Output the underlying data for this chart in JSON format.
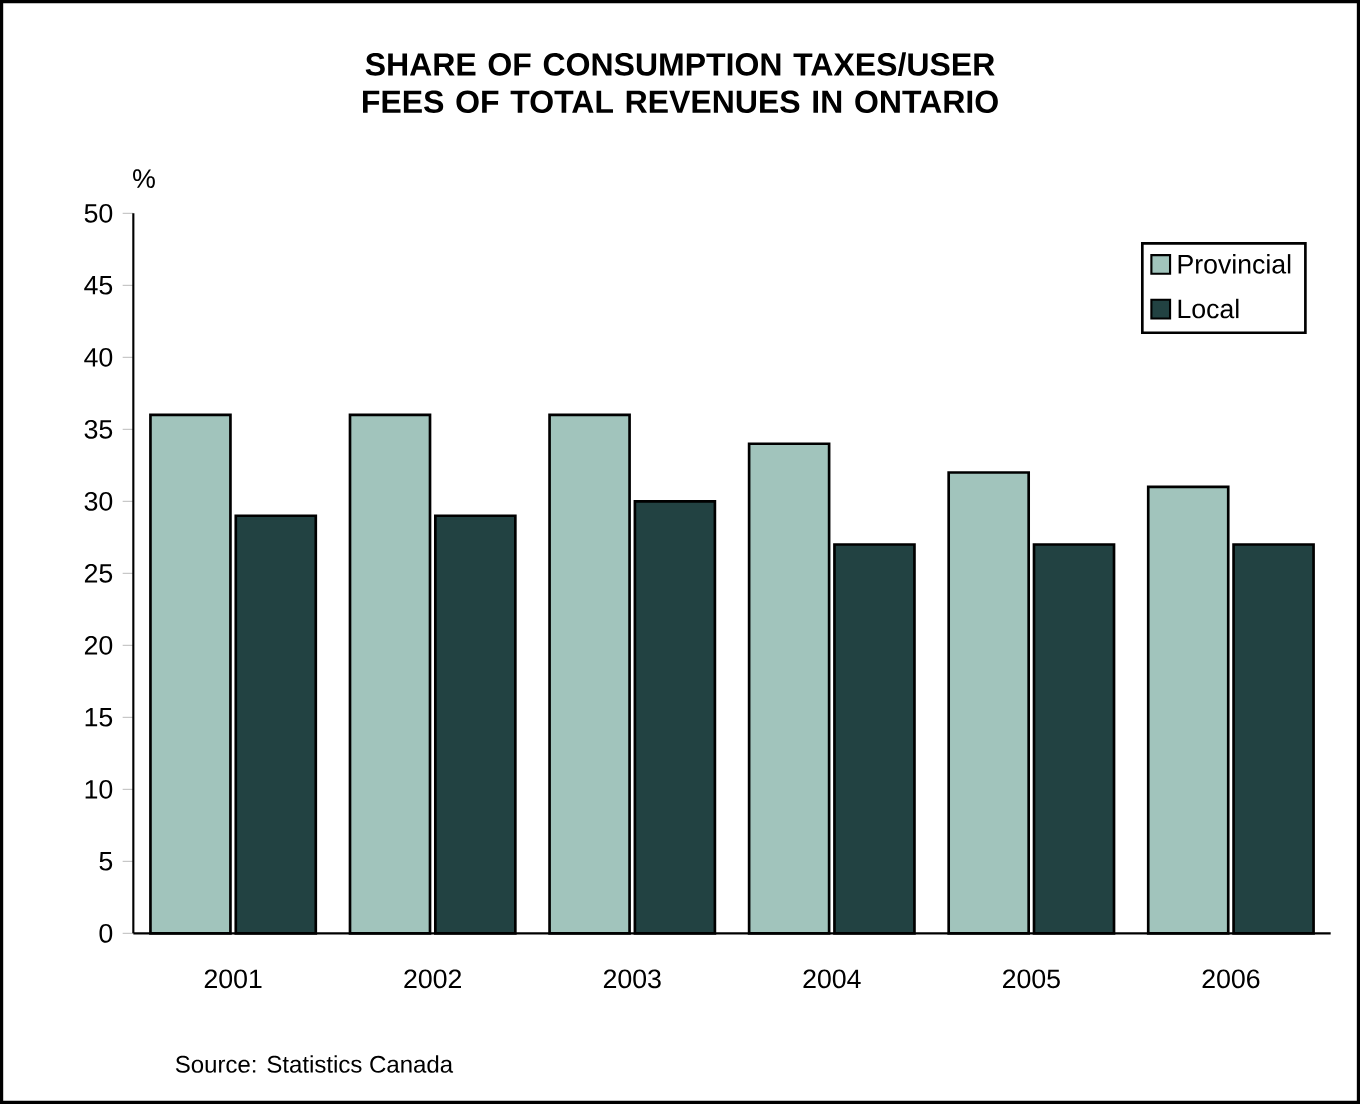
{
  "chart_data": {
    "type": "bar",
    "title": "SHARE OF CONSUMPTION TAXES/USER FEES OF TOTAL REVENUES  IN ONTARIO",
    "ylabel": "%",
    "categories": [
      "2001",
      "2002",
      "2003",
      "2004",
      "2005",
      "2006"
    ],
    "series": [
      {
        "name": "Provincial",
        "color": "#a1c4bc",
        "values": [
          36,
          36,
          36,
          34,
          32,
          31
        ]
      },
      {
        "name": "Local",
        "color": "#224242",
        "values": [
          29,
          29,
          30,
          27,
          27,
          27
        ]
      }
    ],
    "ylim": [
      0,
      50
    ],
    "yticks": [
      0,
      5,
      10,
      15,
      20,
      25,
      30,
      35,
      40,
      45,
      50
    ],
    "grid": false,
    "legend": "top right",
    "annotations": [
      "Source: Statistics Canada"
    ]
  }
}
